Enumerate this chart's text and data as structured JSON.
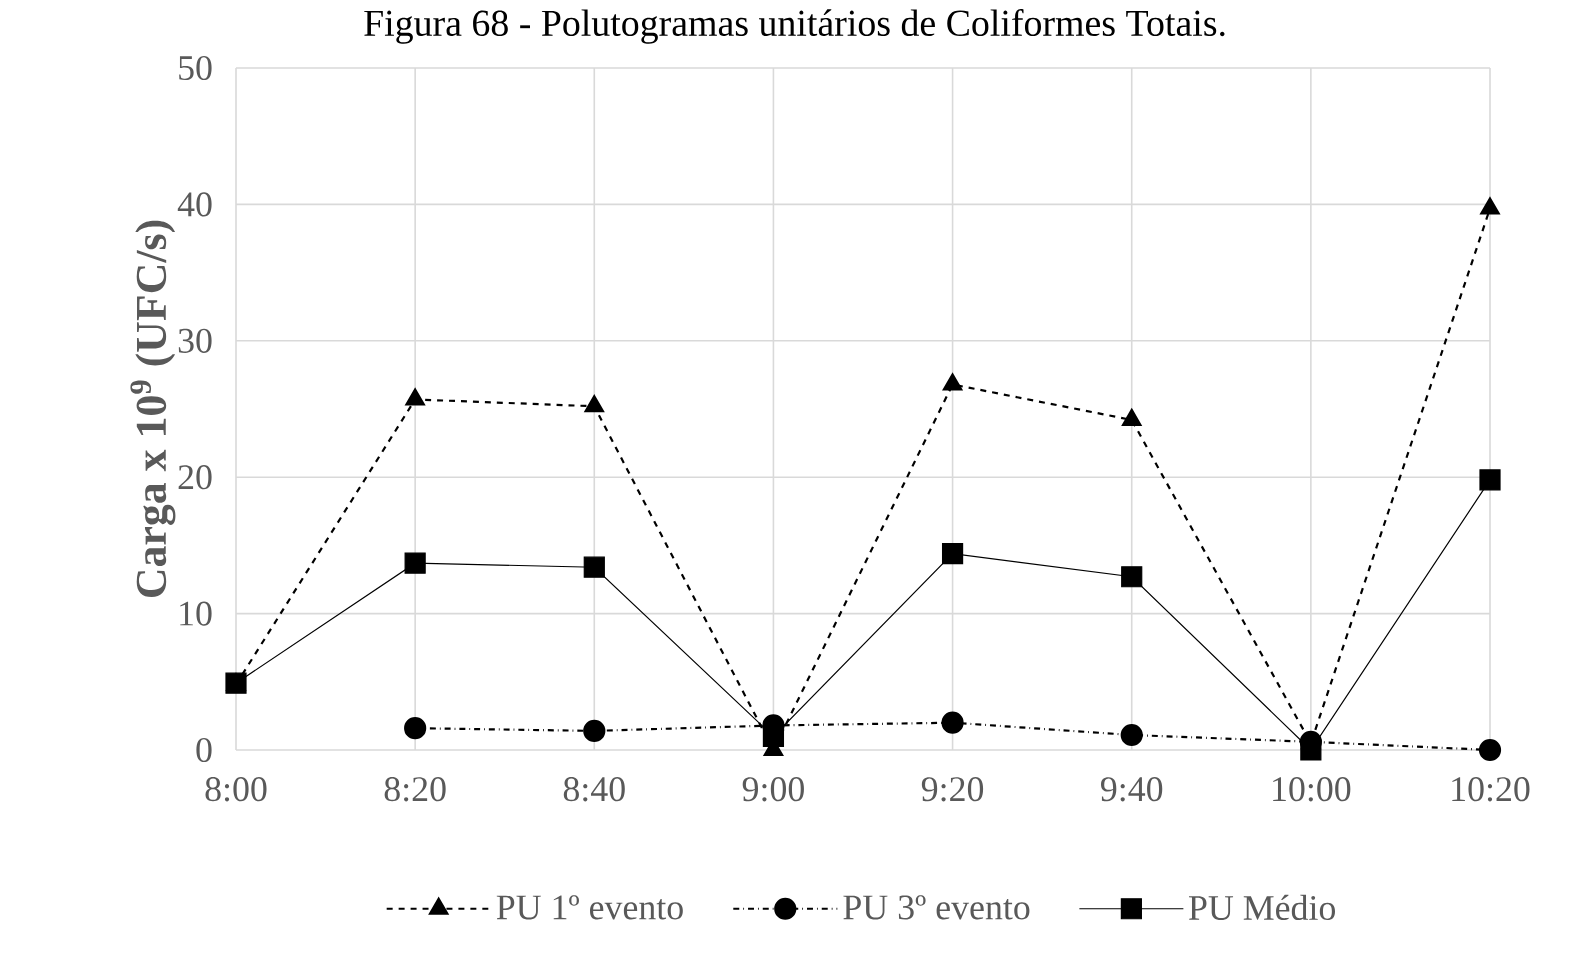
{
  "chart_data": {
    "type": "line",
    "title": "Figura 68 - Polutogramas unitários de Coliformes Totais.",
    "ylabel": "Carga x 10$^{9}$ (UFC/s)",
    "categories": [
      "8:00",
      "8:20",
      "8:40",
      "9:00",
      "9:20",
      "9:40",
      "10:00",
      "10:20"
    ],
    "ylim": [
      0,
      50
    ],
    "yticks": [
      0,
      10,
      20,
      30,
      40,
      50
    ],
    "grid": true,
    "legend": "bottom",
    "series": [
      {
        "name": "PU 1º evento",
        "color": "#000000",
        "marker": "triangle",
        "line_style": "dashed",
        "values": [
          4.8,
          25.7,
          25.2,
          0,
          26.8,
          24.2,
          0.5,
          39.7
        ]
      },
      {
        "name": "PU 3º evento",
        "color": "#000000",
        "marker": "circle",
        "line_style": "dashdot",
        "values": [
          null,
          1.6,
          1.4,
          1.8,
          2.0,
          1.1,
          0.6,
          0
        ]
      },
      {
        "name": "PU Médio",
        "color": "#000000",
        "marker": "square",
        "line_style": "solid",
        "values": [
          4.9,
          13.7,
          13.4,
          1.0,
          14.4,
          12.7,
          0,
          19.8
        ]
      }
    ]
  }
}
